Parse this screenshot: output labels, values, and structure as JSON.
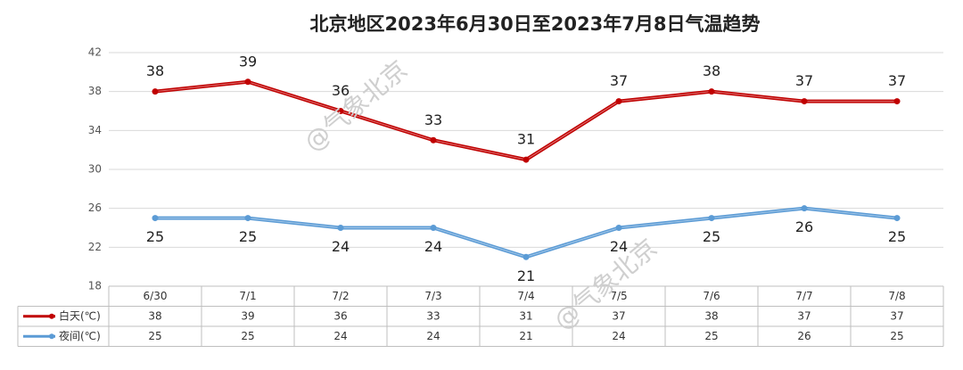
{
  "chart_data": {
    "type": "line",
    "title": "北京地区2023年6月30日至2023年7月8日气温趋势",
    "watermark": "@气象北京",
    "categories": [
      "6/30",
      "7/1",
      "7/2",
      "7/3",
      "7/4",
      "7/5",
      "7/6",
      "7/7",
      "7/8"
    ],
    "series": [
      {
        "name": "白天(℃)",
        "color": "#c00000",
        "label_side": "above",
        "values": [
          38,
          39,
          36,
          33,
          31,
          37,
          38,
          37,
          37
        ]
      },
      {
        "name": "夜间(℃)",
        "color": "#5b9bd5",
        "label_side": "below",
        "values": [
          25,
          25,
          24,
          24,
          21,
          24,
          25,
          26,
          25
        ]
      }
    ],
    "ylim": [
      18,
      42
    ],
    "yticks": [
      18,
      22,
      26,
      30,
      34,
      38,
      42
    ],
    "grid": true,
    "data_table": true
  }
}
